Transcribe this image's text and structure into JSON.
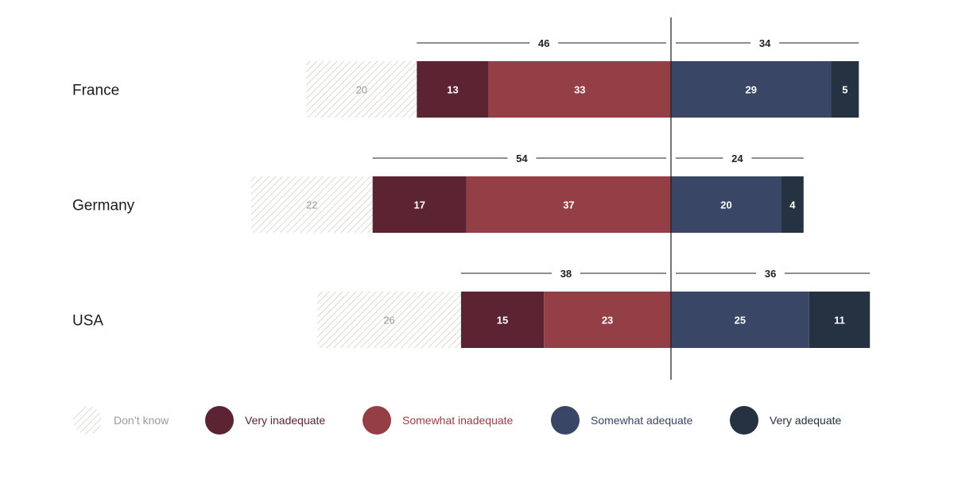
{
  "chart_data": {
    "type": "bar",
    "orientation": "horizontal-diverging",
    "categories": [
      "France",
      "Germany",
      "USA"
    ],
    "series": [
      {
        "name": "Don’t know",
        "values": [
          20,
          22,
          26
        ],
        "color": "#ffffff",
        "pattern": "diagonal-hatch"
      },
      {
        "name": "Very inadequate",
        "values": [
          13,
          17,
          15
        ],
        "color": "#5c2432"
      },
      {
        "name": "Somewhat inadequate",
        "values": [
          33,
          37,
          23
        ],
        "color": "#943f45"
      },
      {
        "name": "Somewhat adequate",
        "values": [
          29,
          20,
          25
        ],
        "color": "#3a4665"
      },
      {
        "name": "Very adequate",
        "values": [
          5,
          4,
          11
        ],
        "color": "#243241"
      }
    ],
    "totals": {
      "inadequate": [
        46,
        54,
        38
      ],
      "adequate": [
        34,
        24,
        36
      ]
    },
    "legend_position": "bottom",
    "grid": false
  }
}
